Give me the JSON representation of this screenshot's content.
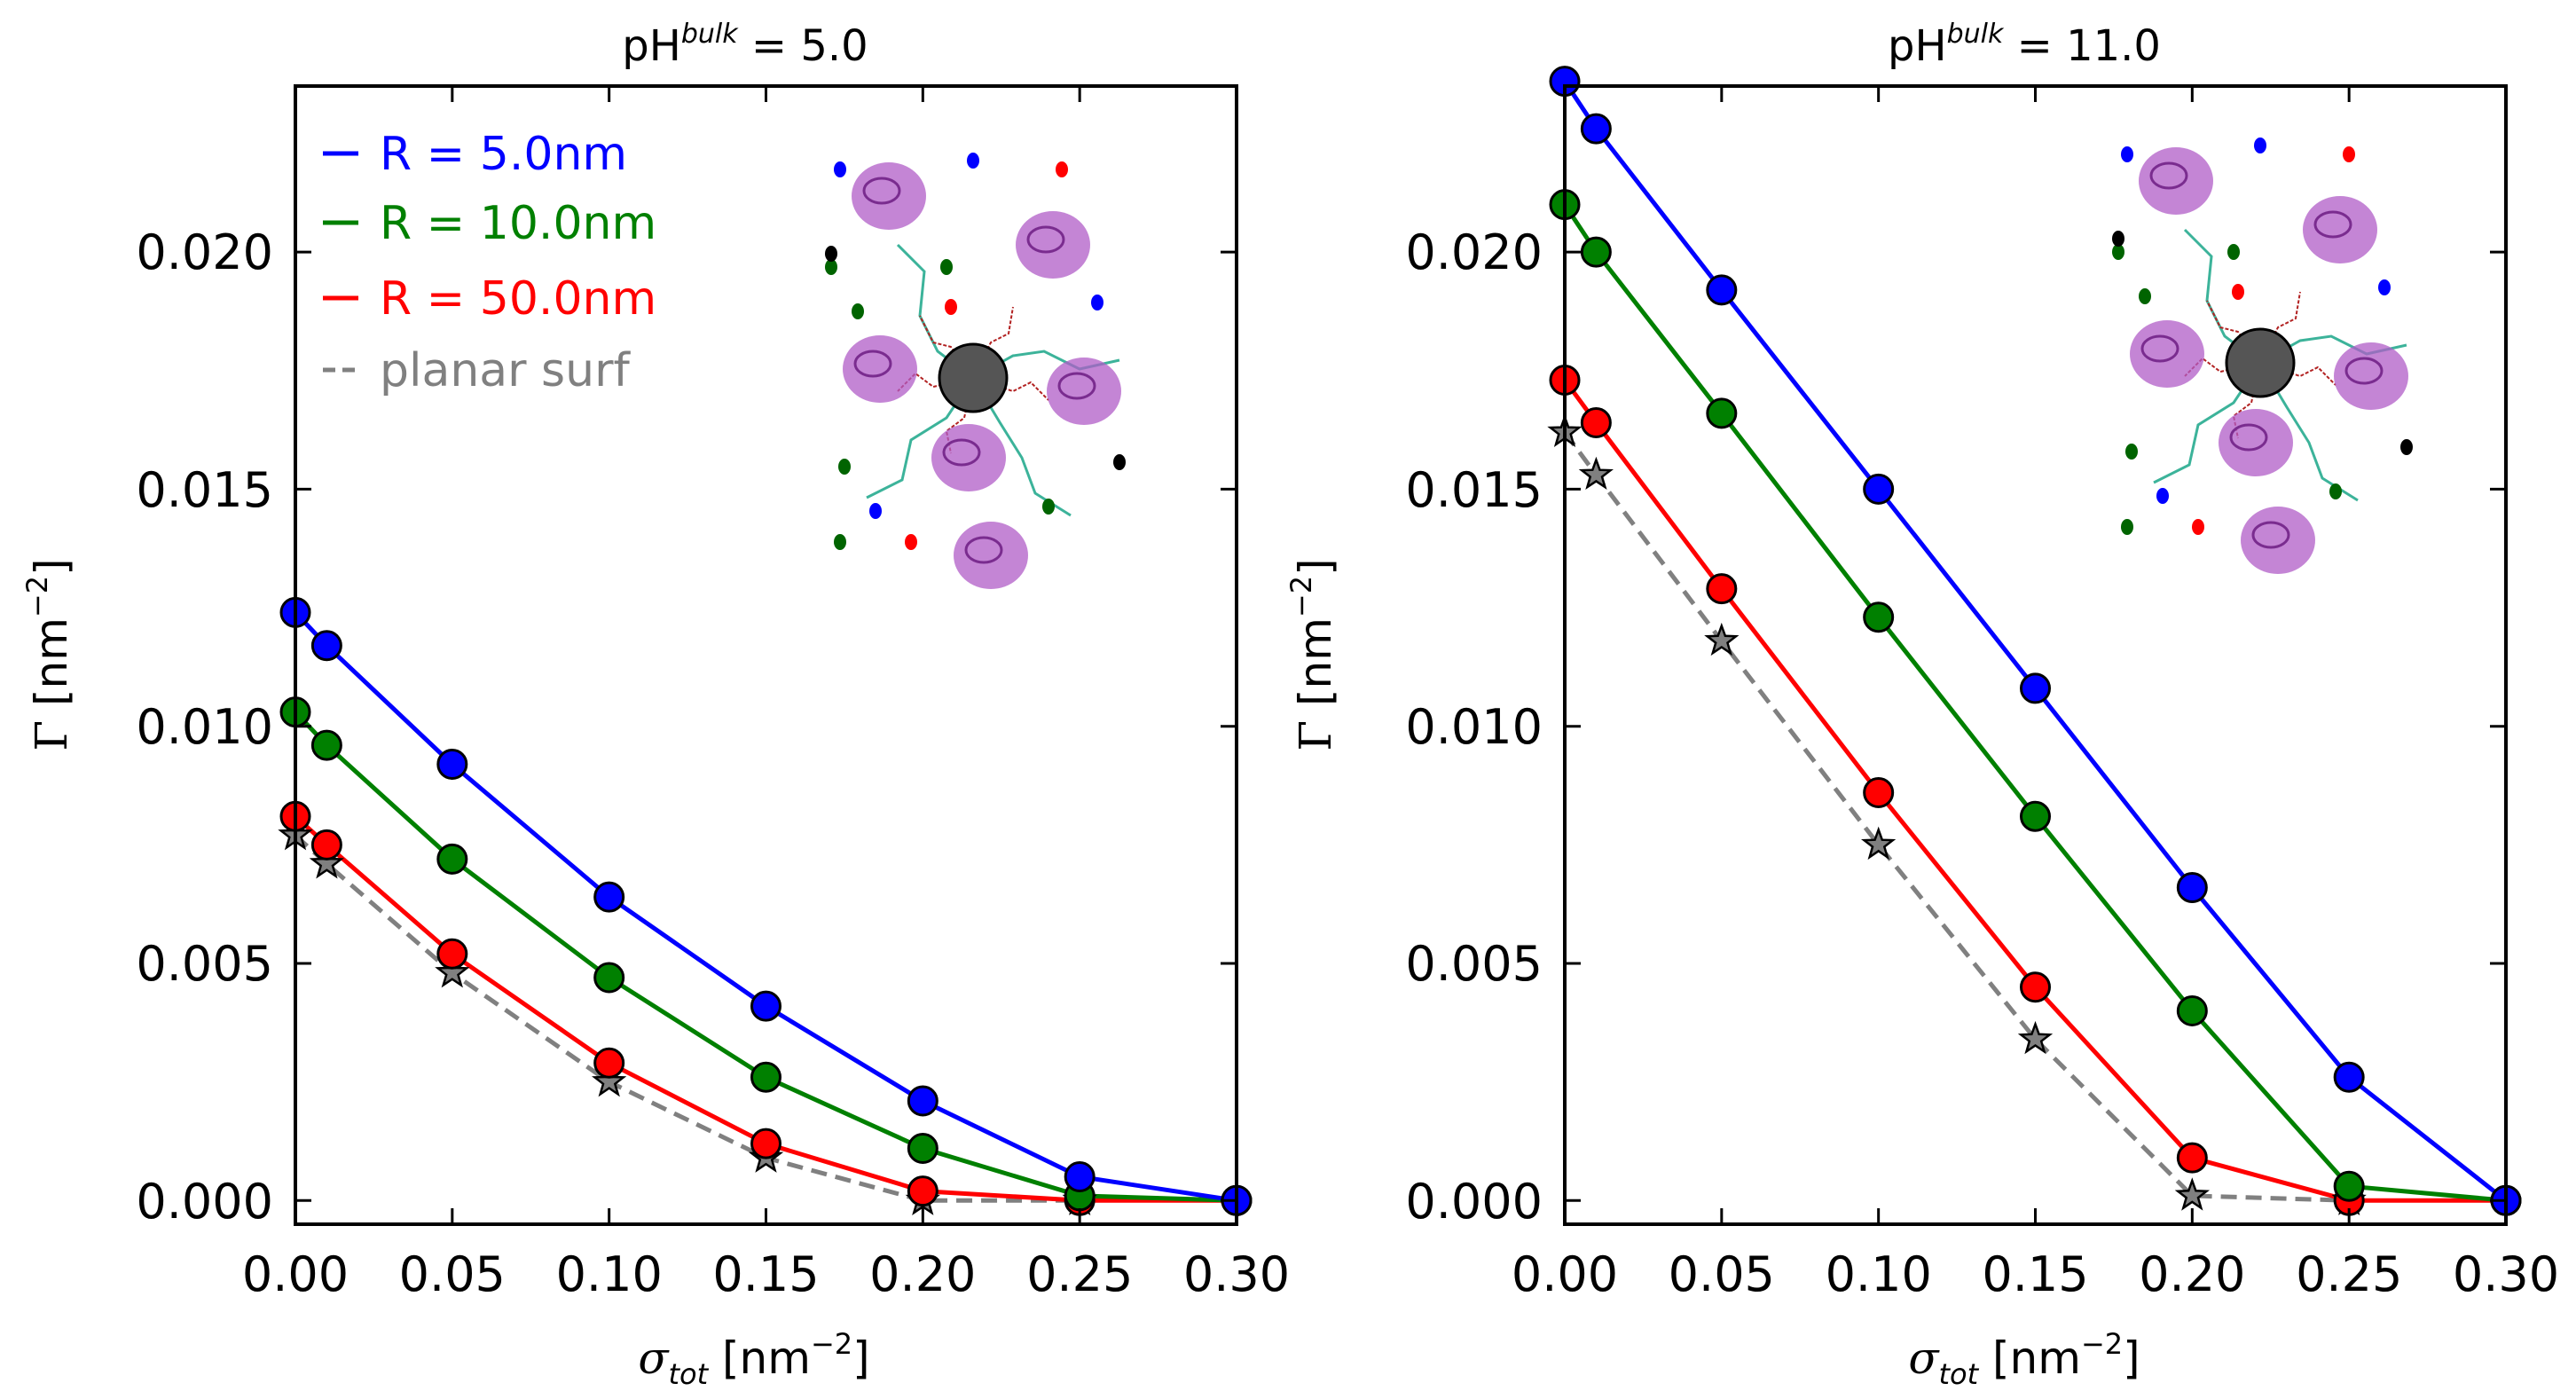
{
  "chart_data": [
    {
      "type": "line",
      "title_base": "pH",
      "title_sup": "bulk",
      "title_rest": " = 5.0",
      "xlabel_sym": "σ",
      "xlabel_sub": "tot",
      "xlabel_unit": " [nm",
      "xlabel_exp": "−2",
      "xlabel_end": "]",
      "ylabel_sym": "Γ",
      "ylabel_unit": " [nm",
      "ylabel_exp": "−2",
      "ylabel_end": "]",
      "xlim": [
        0.0,
        0.3
      ],
      "ylim": [
        -0.0005,
        0.0235
      ],
      "xticks": [
        "0.00",
        "0.05",
        "0.10",
        "0.15",
        "0.20",
        "0.25",
        "0.30"
      ],
      "yticks": [
        "0.000",
        "0.005",
        "0.010",
        "0.015",
        "0.020"
      ],
      "legend": {
        "position": "top-left"
      },
      "inset": "nanoparticle-with-grafted-chains-and-proteins",
      "series": [
        {
          "name": "R = 5.0nm",
          "color": "#0000ff",
          "style": "solid",
          "marker": "circle",
          "x": [
            0.0,
            0.01,
            0.05,
            0.1,
            0.15,
            0.2,
            0.25,
            0.3
          ],
          "y": [
            0.0124,
            0.0117,
            0.0092,
            0.0064,
            0.0041,
            0.0021,
            0.0005,
            0.0
          ]
        },
        {
          "name": "R = 10.0nm",
          "color": "#008000",
          "style": "solid",
          "marker": "circle",
          "x": [
            0.0,
            0.01,
            0.05,
            0.1,
            0.15,
            0.2,
            0.25,
            0.3
          ],
          "y": [
            0.0103,
            0.0096,
            0.0072,
            0.0047,
            0.0026,
            0.0011,
            0.0001,
            0.0
          ]
        },
        {
          "name": "R = 50.0nm",
          "color": "#ff0000",
          "style": "solid",
          "marker": "circle",
          "x": [
            0.0,
            0.01,
            0.05,
            0.1,
            0.15,
            0.2,
            0.25,
            0.3
          ],
          "y": [
            0.0081,
            0.0075,
            0.0052,
            0.0029,
            0.0012,
            0.0002,
            0.0,
            0.0
          ]
        },
        {
          "name": "planar surf",
          "color": "#808080",
          "style": "dashed",
          "marker": "star",
          "x": [
            0.0,
            0.01,
            0.05,
            0.1,
            0.15,
            0.2,
            0.25
          ],
          "y": [
            0.0077,
            0.0071,
            0.0048,
            0.0025,
            0.0009,
            0.0,
            0.0
          ]
        }
      ]
    },
    {
      "type": "line",
      "title_base": "pH",
      "title_sup": "bulk",
      "title_rest": " = 11.0",
      "xlabel_sym": "σ",
      "xlabel_sub": "tot",
      "xlabel_unit": " [nm",
      "xlabel_exp": "−2",
      "xlabel_end": "]",
      "ylabel_sym": "Γ",
      "ylabel_unit": " [nm",
      "ylabel_exp": "−2",
      "ylabel_end": "]",
      "xlim": [
        0.0,
        0.3
      ],
      "ylim": [
        -0.0005,
        0.0235
      ],
      "xticks": [
        "0.00",
        "0.05",
        "0.10",
        "0.15",
        "0.20",
        "0.25",
        "0.30"
      ],
      "yticks": [
        "0.000",
        "0.005",
        "0.010",
        "0.015",
        "0.020"
      ],
      "inset": "nanoparticle-with-grafted-chains-and-proteins",
      "series": [
        {
          "name": "R = 5.0nm",
          "color": "#0000ff",
          "style": "solid",
          "marker": "circle",
          "x": [
            0.0,
            0.01,
            0.05,
            0.1,
            0.15,
            0.2,
            0.25,
            0.3
          ],
          "y": [
            0.0236,
            0.0226,
            0.0192,
            0.015,
            0.0108,
            0.0066,
            0.0026,
            0.0
          ]
        },
        {
          "name": "R = 10.0nm",
          "color": "#008000",
          "style": "solid",
          "marker": "circle",
          "x": [
            0.0,
            0.01,
            0.05,
            0.1,
            0.15,
            0.2,
            0.25,
            0.3
          ],
          "y": [
            0.021,
            0.02,
            0.0166,
            0.0123,
            0.0081,
            0.004,
            0.0003,
            0.0
          ]
        },
        {
          "name": "R = 50.0nm",
          "color": "#ff0000",
          "style": "solid",
          "marker": "circle",
          "x": [
            0.0,
            0.01,
            0.05,
            0.1,
            0.15,
            0.2,
            0.25,
            0.3
          ],
          "y": [
            0.0173,
            0.0164,
            0.0129,
            0.0086,
            0.0045,
            0.0009,
            0.0,
            0.0
          ]
        },
        {
          "name": "planar surf",
          "color": "#808080",
          "style": "dashed",
          "marker": "star",
          "x": [
            0.0,
            0.01,
            0.05,
            0.1,
            0.15,
            0.2,
            0.25
          ],
          "y": [
            0.0162,
            0.0153,
            0.0118,
            0.0075,
            0.0034,
            0.0001,
            0.0
          ]
        }
      ]
    }
  ]
}
